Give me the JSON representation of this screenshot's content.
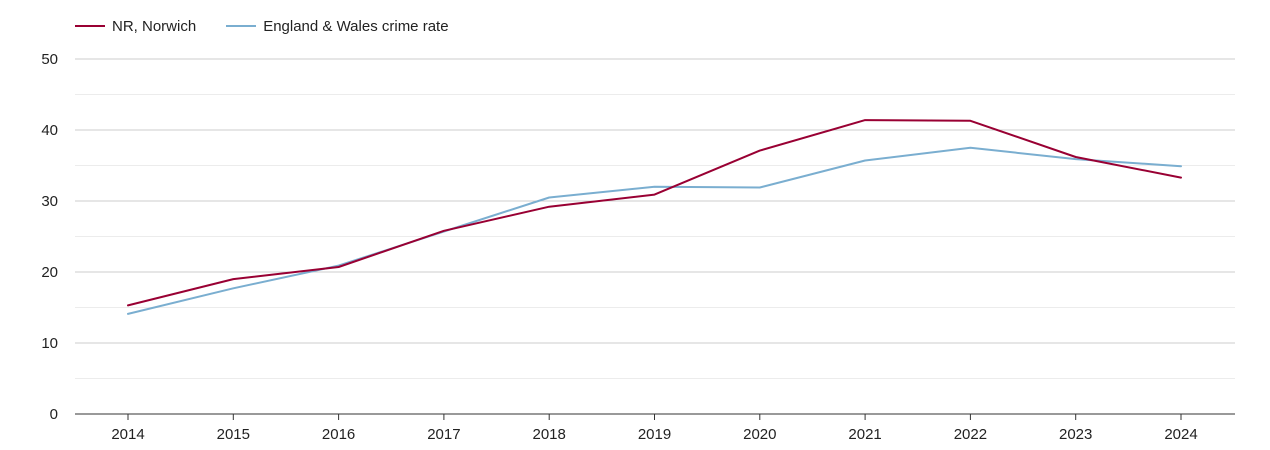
{
  "chart_data": {
    "type": "line",
    "title": "",
    "xlabel": "",
    "ylabel": "",
    "categories": [
      "2014",
      "2015",
      "2016",
      "2017",
      "2018",
      "2019",
      "2020",
      "2021",
      "2022",
      "2023",
      "2024"
    ],
    "ylim": [
      0,
      50
    ],
    "yticks": [
      0,
      10,
      20,
      30,
      40,
      50
    ],
    "grid": true,
    "legend_position": "top-left",
    "series": [
      {
        "name": "NR, Norwich",
        "color": "#990033",
        "values": [
          15.3,
          19.0,
          20.7,
          25.8,
          29.2,
          30.9,
          37.1,
          41.4,
          41.3,
          36.2,
          33.3
        ]
      },
      {
        "name": "England & Wales crime rate",
        "color": "#7aaed0",
        "values": [
          14.1,
          17.7,
          20.9,
          25.7,
          30.5,
          32.0,
          31.9,
          35.7,
          37.5,
          35.9,
          34.9
        ]
      }
    ]
  }
}
